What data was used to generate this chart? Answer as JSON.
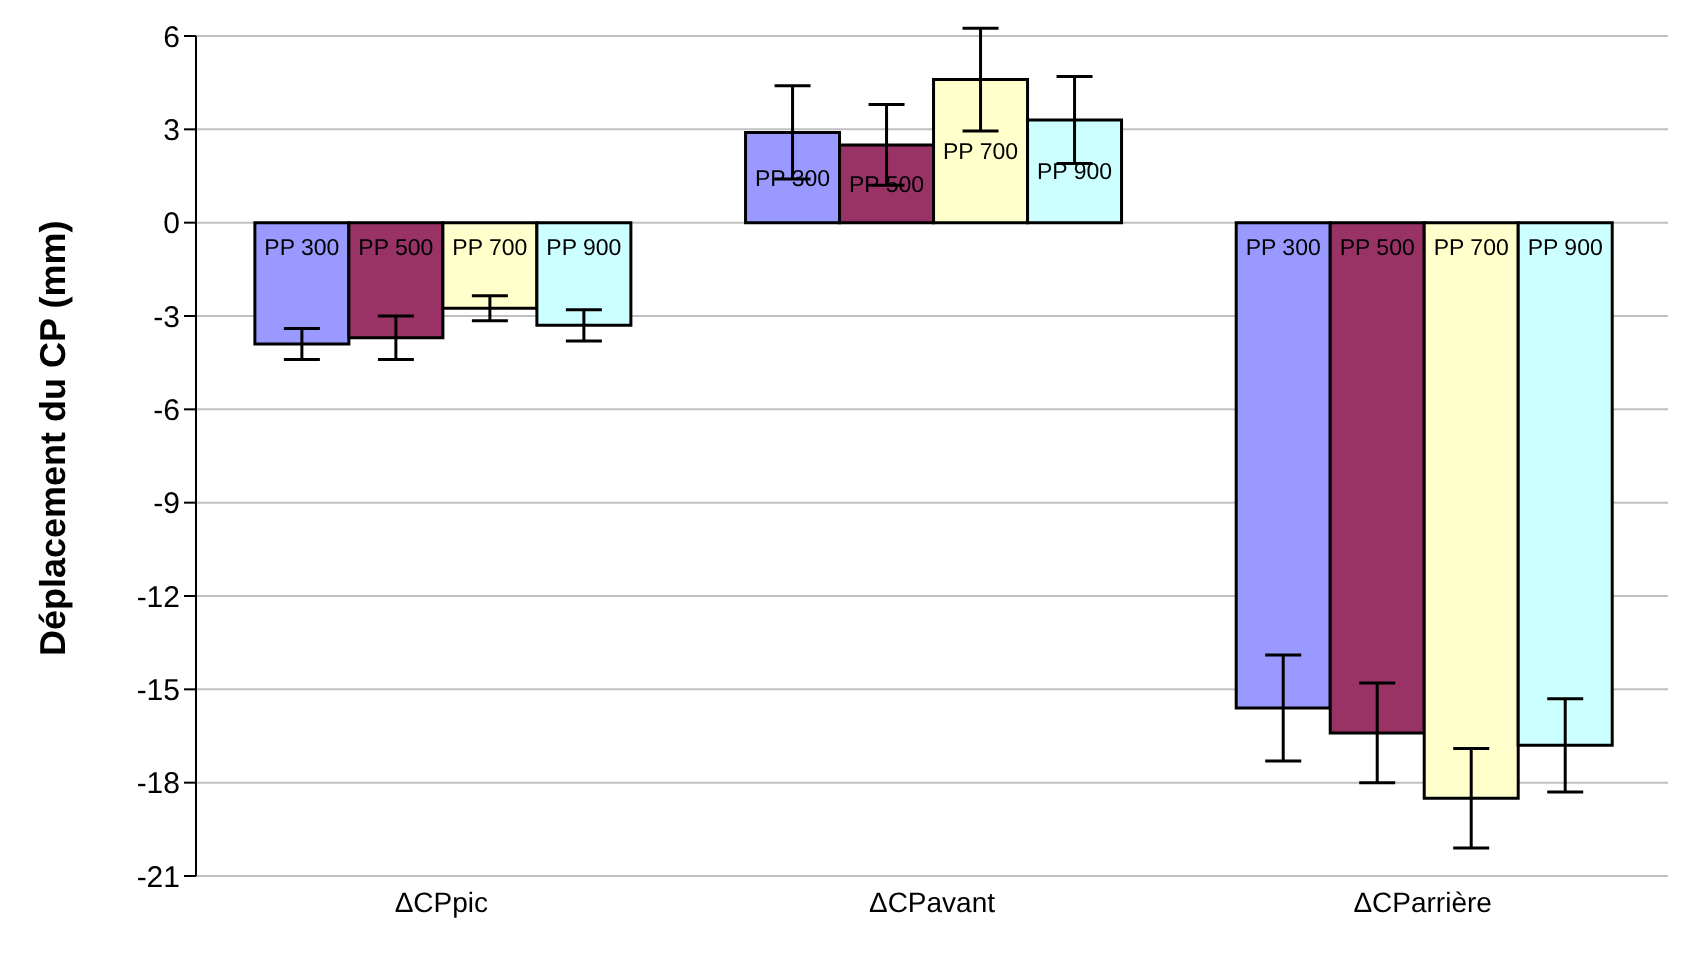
{
  "chart_data": {
    "type": "bar",
    "ylabel": "Déplacement du CP (mm)",
    "categories": [
      "ΔCPpic",
      "ΔCPavant",
      "ΔCParrière"
    ],
    "series": [
      {
        "name": "PP 300",
        "color": "#9999ff",
        "values": [
          -3.9,
          2.9,
          -15.6
        ],
        "errors": [
          0.5,
          1.5,
          1.7
        ]
      },
      {
        "name": "PP 500",
        "color": "#993366",
        "values": [
          -3.7,
          2.5,
          -16.4
        ],
        "errors": [
          0.7,
          1.3,
          1.6
        ]
      },
      {
        "name": "PP 700",
        "color": "#ffffcc",
        "values": [
          -2.75,
          4.6,
          -18.5
        ],
        "errors": [
          0.4,
          1.65,
          1.6
        ]
      },
      {
        "name": "PP 900",
        "color": "#ccffff",
        "values": [
          -3.3,
          3.3,
          -16.8
        ],
        "errors": [
          0.5,
          1.4,
          1.5
        ]
      }
    ],
    "ylim": [
      -21,
      6
    ],
    "yticks": [
      -21,
      -18,
      -15,
      -12,
      -9,
      -6,
      -3,
      0,
      3,
      6
    ],
    "grid": "y",
    "legend": false
  }
}
